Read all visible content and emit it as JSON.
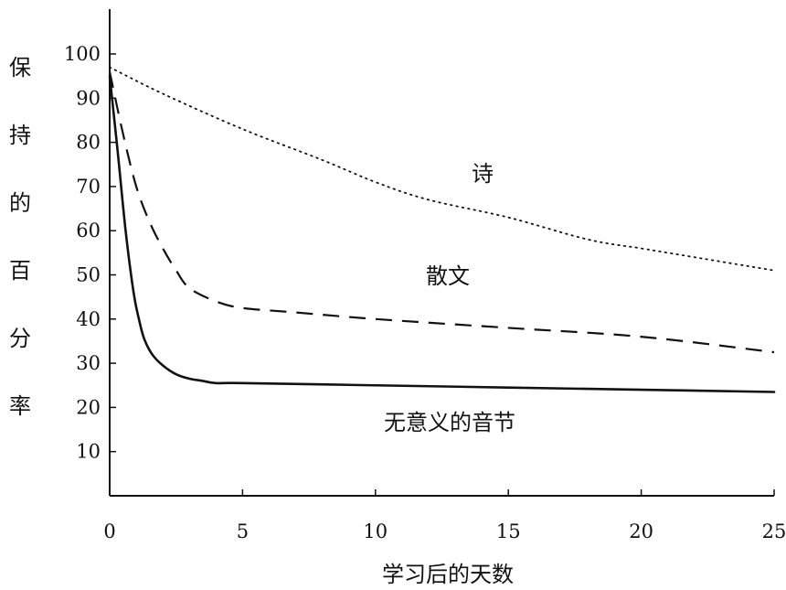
{
  "chart_data": {
    "type": "line",
    "xlabel": "学习后的天数",
    "ylabel": "保持的百分率",
    "xlim": [
      0,
      25
    ],
    "ylim": [
      0,
      110
    ],
    "xticks": [
      0,
      5,
      10,
      15,
      20,
      25
    ],
    "yticks": [
      10,
      20,
      30,
      40,
      50,
      60,
      70,
      80,
      90,
      100
    ],
    "grid": false,
    "legend": "inline labels",
    "series": [
      {
        "name": "诗",
        "style": "dotted",
        "x": [
          0,
          2,
          5,
          8,
          10,
          12,
          15,
          18,
          20,
          22,
          25
        ],
        "y": [
          97,
          91,
          83,
          76,
          71,
          67,
          63,
          58,
          56,
          54,
          51
        ]
      },
      {
        "name": "散文",
        "style": "dashed",
        "x": [
          0,
          0.5,
          1,
          1.5,
          2,
          2.5,
          3,
          4,
          5,
          7,
          10,
          15,
          20,
          25
        ],
        "y": [
          96,
          82,
          70,
          62,
          56,
          51,
          47,
          44,
          42.5,
          41.5,
          40,
          38,
          36,
          32.5
        ]
      },
      {
        "name": "无意义的音节",
        "style": "solid",
        "x": [
          0,
          0.3,
          0.6,
          0.9,
          1.1,
          1.3,
          1.6,
          2,
          2.5,
          3,
          3.5,
          4,
          5,
          10,
          15,
          20,
          25
        ],
        "y": [
          95,
          78,
          60,
          46,
          40,
          35.5,
          32,
          29.5,
          27.5,
          26.5,
          26,
          25.5,
          25.5,
          25,
          24.5,
          24,
          23.5
        ]
      }
    ]
  }
}
